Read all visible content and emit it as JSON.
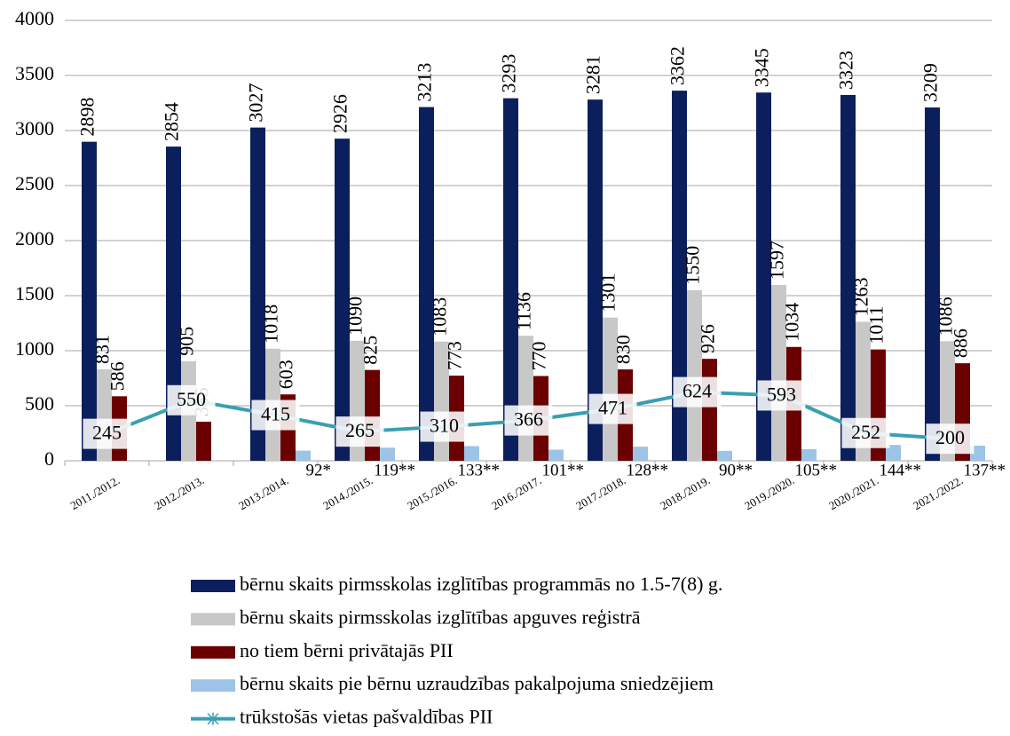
{
  "chart_data": {
    "type": "bar",
    "categories": [
      "2011./2012.",
      "2012./2013.",
      "2013./2014.",
      "2014./2015.",
      "2015./2016.",
      "2016./2017.",
      "2017./2018.",
      "2018./2019.",
      "2019./2020.",
      "2020./2021.",
      "2021./2022."
    ],
    "series": [
      {
        "name": "bērnu skaits pirmsskolas izglītības programmās no 1.5-7(8) g.",
        "color": "#0b1f5c",
        "values": [
          2898,
          2854,
          3027,
          2926,
          3213,
          3293,
          3281,
          3362,
          3345,
          3323,
          3209
        ]
      },
      {
        "name": "bērnu skaits pirmsskolas izglītības apguves reģistrā",
        "color": "#c8c8c8",
        "values": [
          831,
          905,
          1018,
          1090,
          1083,
          1136,
          1301,
          1550,
          1597,
          1263,
          1086
        ]
      },
      {
        "name": "no tiem bērni privātajās PII",
        "color": "#6b0000",
        "values": [
          586,
          355,
          603,
          825,
          773,
          770,
          830,
          926,
          1034,
          1011,
          886
        ]
      },
      {
        "name": "bērnu skaits pie bērnu uzraudzības pakalpojuma sniedzējiem",
        "color": "#9dc3e6",
        "values": [
          null,
          null,
          92,
          119,
          133,
          101,
          128,
          90,
          105,
          144,
          137
        ],
        "value_labels": [
          null,
          null,
          "92*",
          "119**",
          "133**",
          "101**",
          "128**",
          "90**",
          "105**",
          "144**",
          "137**"
        ]
      },
      {
        "name": "trūkstošās vietas pašvaldības PII",
        "color": "#3a9fb2",
        "type": "line",
        "values": [
          245,
          550,
          415,
          265,
          310,
          366,
          471,
          624,
          593,
          252,
          200
        ]
      }
    ],
    "ylim": [
      0,
      4000
    ],
    "yticks": [
      0,
      500,
      1000,
      1500,
      2000,
      2500,
      3000,
      3500,
      4000
    ],
    "grid": true
  }
}
